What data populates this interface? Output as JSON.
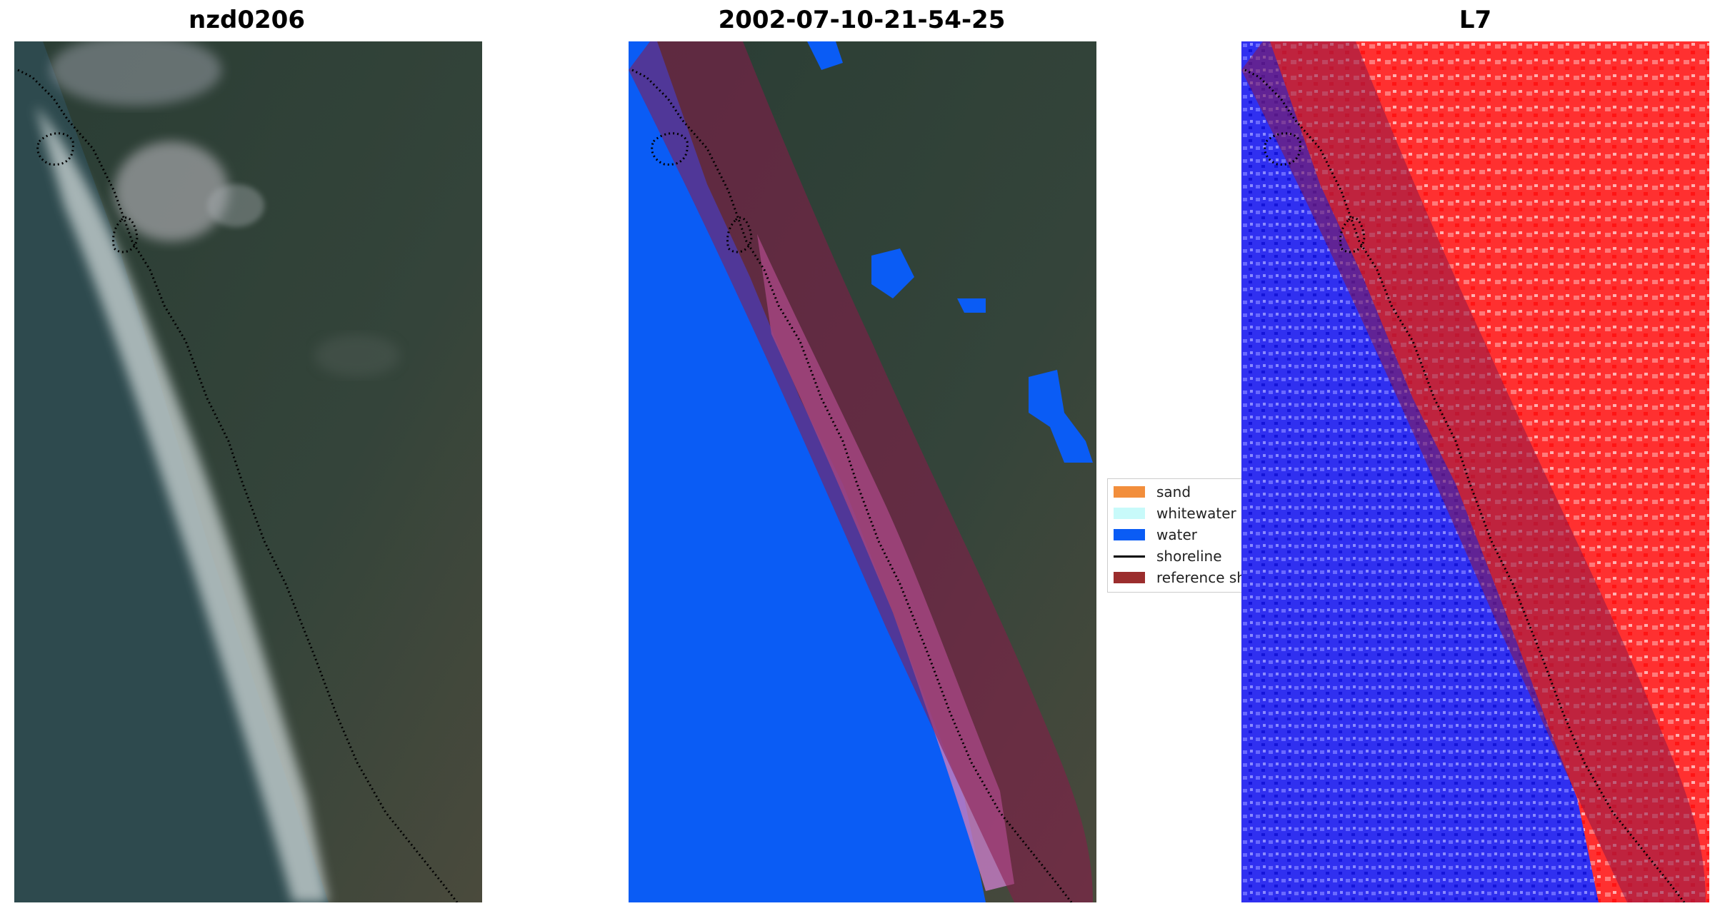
{
  "panels": [
    {
      "title": "nzd0206"
    },
    {
      "title": "2002-07-10-21-54-25"
    },
    {
      "title": "L7"
    }
  ],
  "legend": {
    "items": [
      {
        "label": "sand",
        "color": "#f28e3c",
        "kind": "patch"
      },
      {
        "label": "whitewater",
        "color": "#c8fafa",
        "kind": "patch"
      },
      {
        "label": "water",
        "color": "#0a5cf5",
        "kind": "patch"
      },
      {
        "label": "shoreline",
        "color": "#000000",
        "kind": "line"
      },
      {
        "label": "reference sh",
        "color": "#9b2d2d",
        "kind": "patch"
      }
    ]
  },
  "colors": {
    "water_class": "#0a5cf5",
    "reference_buffer": "#8b1a4a",
    "index_positive": "#ff1a1a",
    "index_negative": "#1a1aff"
  }
}
